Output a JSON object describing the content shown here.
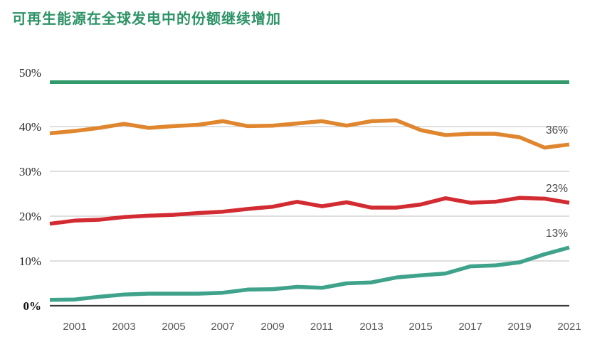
{
  "title": "可再生能源在全球发电中的份额继续增加",
  "colors": {
    "title_green": "#2d9366",
    "topline_green": "#339a6c",
    "grid_gray": "#c9c9c9",
    "axis_dark": "#3b3b3b",
    "orange": "#e0862f",
    "red": "#d22b32",
    "teal": "#3fa28b",
    "y_label": "#262626",
    "x_label": "#595959",
    "end_label": "#4a4a4a"
  },
  "chart_data": {
    "type": "line",
    "title": "可再生能源在全球发电中的份额继续增加",
    "xlabel": "",
    "ylabel": "",
    "ylim": [
      0,
      50
    ],
    "grid": "horizontal",
    "legend": "none",
    "x": [
      2000,
      2001,
      2002,
      2003,
      2004,
      2005,
      2006,
      2007,
      2008,
      2009,
      2010,
      2011,
      2012,
      2013,
      2014,
      2015,
      2016,
      2017,
      2018,
      2019,
      2020,
      2021
    ],
    "series": [
      {
        "name": "orange-series",
        "color_key": "orange",
        "end_label": "36%",
        "end_value": 36,
        "values": [
          38.5,
          39.0,
          39.7,
          40.6,
          39.7,
          40.1,
          40.4,
          41.2,
          40.1,
          40.2,
          40.7,
          41.2,
          40.2,
          41.2,
          41.4,
          39.2,
          38.1,
          38.4,
          38.4,
          37.6,
          35.3,
          36.0
        ]
      },
      {
        "name": "red-series",
        "color_key": "red",
        "end_label": "23%",
        "end_value": 23,
        "values": [
          18.3,
          19.0,
          19.2,
          19.8,
          20.1,
          20.3,
          20.7,
          21.0,
          21.6,
          22.1,
          23.2,
          22.2,
          23.1,
          21.9,
          21.9,
          22.6,
          24.0,
          23.0,
          23.2,
          24.1,
          23.9,
          23.0
        ]
      },
      {
        "name": "teal-series",
        "color_key": "teal",
        "end_label": "13%",
        "end_value": 13,
        "values": [
          1.3,
          1.4,
          2.0,
          2.5,
          2.7,
          2.7,
          2.7,
          2.9,
          3.6,
          3.7,
          4.2,
          4.0,
          5.0,
          5.2,
          6.3,
          6.8,
          7.2,
          8.8,
          9.0,
          9.7,
          11.5,
          13.0
        ]
      }
    ],
    "y_ticks": [
      {
        "label": "0%",
        "value": 0,
        "bold": true
      },
      {
        "label": "10%",
        "value": 10,
        "bold": false
      },
      {
        "label": "20%",
        "value": 20,
        "bold": false
      },
      {
        "label": "30%",
        "value": 30,
        "bold": false
      },
      {
        "label": "40%",
        "value": 40,
        "bold": false
      },
      {
        "label": "50%",
        "value": 50,
        "bold": false
      }
    ],
    "grid_values": [
      10,
      20,
      30,
      40
    ],
    "x_ticks": [
      "2001",
      "2003",
      "2005",
      "2007",
      "2009",
      "2011",
      "2013",
      "2015",
      "2017",
      "2019",
      "2021"
    ]
  }
}
